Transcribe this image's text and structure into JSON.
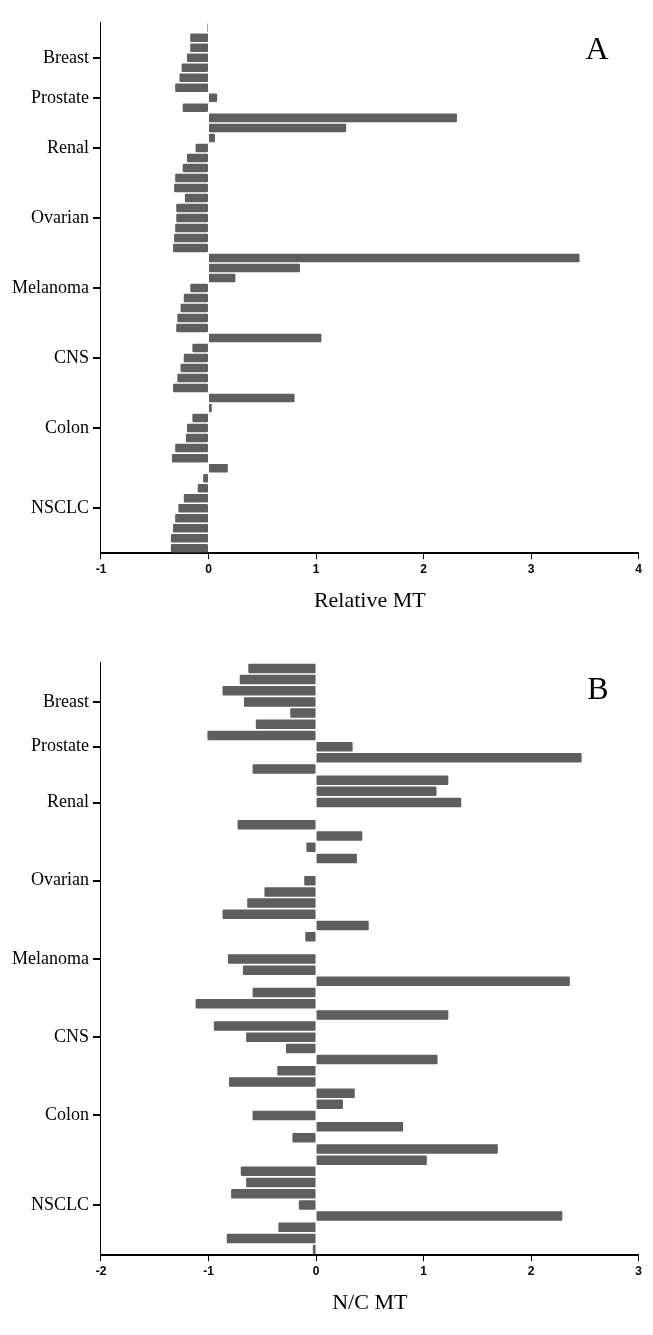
{
  "chart_data": [
    {
      "type": "bar",
      "orientation": "horizontal",
      "categories": [
        null,
        null,
        null,
        "Breast",
        null,
        null,
        null,
        "Prostate",
        null,
        null,
        null,
        null,
        "Renal",
        null,
        null,
        null,
        null,
        null,
        null,
        "Ovarian",
        null,
        null,
        null,
        null,
        null,
        null,
        "Melanoma",
        null,
        null,
        null,
        null,
        null,
        null,
        "CNS",
        null,
        null,
        null,
        null,
        null,
        null,
        "Colon",
        null,
        null,
        null,
        null,
        null,
        null,
        null,
        "NSCLC",
        null,
        null,
        null,
        null
      ],
      "values": [
        -0.01,
        -0.17,
        -0.17,
        -0.2,
        -0.25,
        -0.27,
        -0.31,
        0.08,
        -0.24,
        2.31,
        1.28,
        0.06,
        -0.12,
        -0.2,
        -0.24,
        -0.31,
        -0.32,
        -0.22,
        -0.3,
        -0.3,
        -0.31,
        -0.32,
        -0.33,
        3.45,
        0.85,
        0.25,
        -0.17,
        -0.23,
        -0.26,
        -0.29,
        -0.3,
        1.05,
        -0.15,
        -0.23,
        -0.26,
        -0.29,
        -0.33,
        0.8,
        0.03,
        -0.15,
        -0.2,
        -0.21,
        -0.31,
        -0.34,
        0.18,
        -0.05,
        -0.1,
        -0.23,
        -0.28,
        -0.31,
        -0.33,
        -0.35,
        -0.35
      ],
      "color": "#5e5e5e",
      "xlim": [
        -1,
        4
      ],
      "xticks": [
        -1,
        0,
        1,
        2,
        3,
        4
      ],
      "xlabel": "Relative MT",
      "annotations": [
        "A"
      ],
      "grid": false
    },
    {
      "type": "bar",
      "orientation": "horizontal",
      "categories": [
        null,
        null,
        null,
        "Breast",
        null,
        null,
        null,
        "Prostate",
        null,
        null,
        null,
        null,
        "Renal",
        null,
        null,
        null,
        null,
        null,
        null,
        "Ovarian",
        null,
        null,
        null,
        null,
        null,
        null,
        "Melanoma",
        null,
        null,
        null,
        null,
        null,
        null,
        "CNS",
        null,
        null,
        null,
        null,
        null,
        null,
        "Colon",
        null,
        null,
        null,
        null,
        null,
        null,
        null,
        "NSCLC",
        null,
        null,
        null,
        null
      ],
      "values": [
        -0.63,
        -0.71,
        -0.87,
        -0.67,
        -0.24,
        -0.56,
        -1.01,
        0.34,
        2.47,
        -0.59,
        1.23,
        1.12,
        1.35,
        null,
        -0.73,
        0.43,
        -0.09,
        0.38,
        null,
        -0.11,
        -0.48,
        -0.64,
        -0.87,
        0.49,
        -0.1,
        null,
        -0.82,
        -0.68,
        2.36,
        -0.59,
        -1.12,
        1.23,
        -0.95,
        -0.65,
        -0.28,
        1.13,
        -0.36,
        -0.81,
        0.36,
        0.25,
        -0.59,
        0.81,
        -0.22,
        1.69,
        1.03,
        -0.7,
        -0.65,
        -0.79,
        -0.16,
        2.29,
        -0.35,
        -0.83,
        -0.03
      ],
      "color": "#5e5e5e",
      "xlim": [
        -2,
        3
      ],
      "xticks": [
        -2,
        -1,
        0,
        1,
        2,
        3
      ],
      "xlabel": "N/C MT",
      "annotations": [
        "B"
      ],
      "grid": false
    }
  ]
}
